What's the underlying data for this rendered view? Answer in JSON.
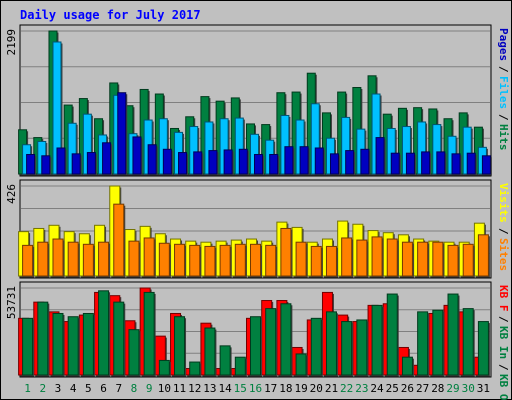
{
  "chart_data": {
    "type": "bar",
    "title": "Daily usage for July 2017",
    "colors": {
      "background": "#c0c0c0",
      "title": "#0000ff",
      "hits": "#008040",
      "files": "#00c0ff",
      "pages": "#0000c0",
      "visits": "#ffff00",
      "sites": "#ff8000",
      "kb_in": "#ff0000",
      "kb_out": "#008040",
      "day_weekday": "#000000",
      "day_weekend": "#008040",
      "right_label_separator": "#000000"
    },
    "days": [
      "1",
      "2",
      "3",
      "4",
      "5",
      "6",
      "7",
      "8",
      "9",
      "10",
      "11",
      "12",
      "13",
      "14",
      "15",
      "16",
      "17",
      "18",
      "19",
      "20",
      "21",
      "22",
      "23",
      "24",
      "25",
      "26",
      "27",
      "28",
      "29",
      "30",
      "31"
    ],
    "weekend_days": [
      "1",
      "2",
      "8",
      "9",
      "15",
      "16",
      "22",
      "23",
      "29",
      "30"
    ],
    "panels": [
      {
        "id": "hits",
        "max_label": "2199",
        "ymax": 2199,
        "right_labels": [
          {
            "text": "Pages",
            "color_key": "pages"
          },
          {
            "text": "Files",
            "color_key": "files"
          },
          {
            "text": "Hits",
            "color_key": "hits"
          }
        ],
        "series": [
          {
            "name": "Hits",
            "color_key": "hits",
            "values": [
              680,
              560,
              2199,
              1060,
              1160,
              850,
              1400,
              1050,
              1300,
              1230,
              700,
              880,
              1190,
              1120,
              1170,
              770,
              760,
              1250,
              1260,
              1550,
              940,
              1260,
              1330,
              1510,
              920,
              1010,
              1020,
              1000,
              850,
              940,
              720
            ]
          },
          {
            "name": "Files",
            "color_key": "files",
            "values": [
              450,
              500,
              2030,
              780,
              920,
              600,
              1210,
              620,
              830,
              850,
              640,
              730,
              800,
              850,
              860,
              610,
              520,
              900,
              830,
              1080,
              550,
              870,
              690,
              1230,
              700,
              730,
              800,
              760,
              580,
              720,
              410
            ]
          },
          {
            "name": "Pages",
            "color_key": "pages",
            "values": [
              300,
              280,
              400,
              310,
              330,
              480,
              1250,
              570,
              450,
              380,
              330,
              340,
              360,
              370,
              380,
              300,
              300,
              420,
              420,
              400,
              310,
              360,
              380,
              560,
              320,
              320,
              340,
              340,
              310,
              320,
              280
            ]
          }
        ]
      },
      {
        "id": "visits",
        "max_label": "426",
        "ymax": 426,
        "right_labels": [
          {
            "text": "Visits",
            "color_key": "visits"
          },
          {
            "text": "Sites",
            "color_key": "sites"
          }
        ],
        "series": [
          {
            "name": "Visits",
            "color_key": "visits",
            "values": [
              210,
              225,
              240,
              210,
              200,
              240,
              426,
              220,
              235,
              200,
              175,
              165,
              160,
              165,
              170,
              175,
              165,
              255,
              230,
              160,
              175,
              260,
              245,
              215,
              205,
              195,
              175,
              165,
              160,
              160,
              250
            ]
          },
          {
            "name": "Sites",
            "color_key": "sites",
            "values": [
              145,
              160,
              175,
              160,
              150,
              160,
              340,
              165,
              180,
              155,
              150,
              145,
              140,
              145,
              150,
              150,
              145,
              225,
              160,
              140,
              140,
              180,
              170,
              185,
              175,
              160,
              160,
              160,
              145,
              150,
              195
            ]
          }
        ]
      },
      {
        "id": "kb",
        "max_label": "53731",
        "ymax": 53731,
        "right_labels": [
          {
            "text": "KB F",
            "color_key": "kb_in"
          },
          {
            "text": "KB In",
            "color_key": "hits"
          },
          {
            "text": "KB Out",
            "color_key": "kb_out"
          }
        ],
        "series": [
          {
            "name": "KB F",
            "color_key": "kb_in",
            "values": [
              35000,
              45000,
              39000,
              33000,
              37000,
              51000,
              49000,
              33500,
              53731,
              24000,
              38000,
              4000,
              32000,
              4000,
              4000,
              35000,
              46000,
              46000,
              17000,
              34000,
              51000,
              37000,
              33000,
              43000,
              44000,
              17000,
              6000,
              38000,
              43000,
              39000,
              11000
            ]
          },
          {
            "name": "KB Out",
            "color_key": "kb_out",
            "values": [
              35000,
              45000,
              38000,
              36000,
              38000,
              52000,
              45000,
              28000,
              51000,
              9000,
              36000,
              8000,
              29000,
              18000,
              11000,
              36000,
              41000,
              44000,
              13000,
              35000,
              39000,
              33000,
              34000,
              43000,
              50000,
              11000,
              39000,
              40000,
              50000,
              41000,
              33000
            ]
          }
        ]
      }
    ]
  }
}
